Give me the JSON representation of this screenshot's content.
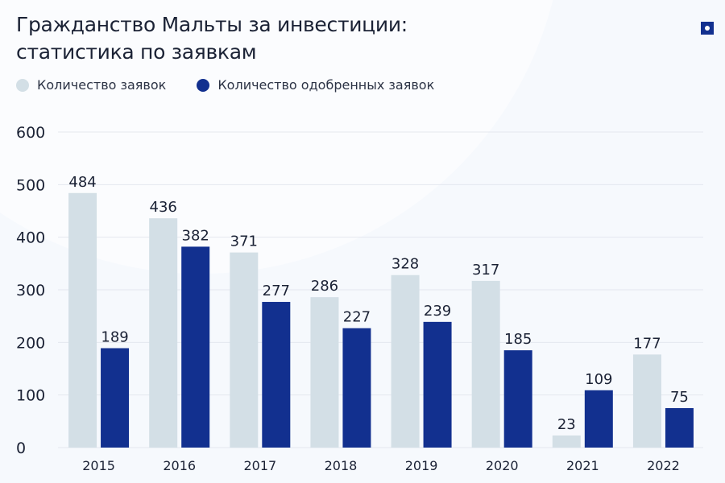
{
  "chart_data": {
    "type": "bar",
    "title": "Гражданство Мальты за инвестиции: статистика по заявкам",
    "categories": [
      "2015",
      "2016",
      "2017",
      "2018",
      "2019",
      "2020",
      "2021",
      "2022"
    ],
    "series": [
      {
        "name": "Количество заявок",
        "color": "#d3dfe6",
        "values": [
          484,
          436,
          371,
          286,
          328,
          317,
          23,
          177
        ]
      },
      {
        "name": "Количество одобренных заявок",
        "color": "#12308f",
        "values": [
          189,
          382,
          277,
          227,
          239,
          185,
          109,
          75
        ]
      }
    ],
    "ylim": [
      0,
      600
    ],
    "yticks": [
      0,
      100,
      200,
      300,
      400,
      500,
      600
    ],
    "grid": true,
    "legend": "top-left",
    "xlabel": "",
    "ylabel": ""
  }
}
